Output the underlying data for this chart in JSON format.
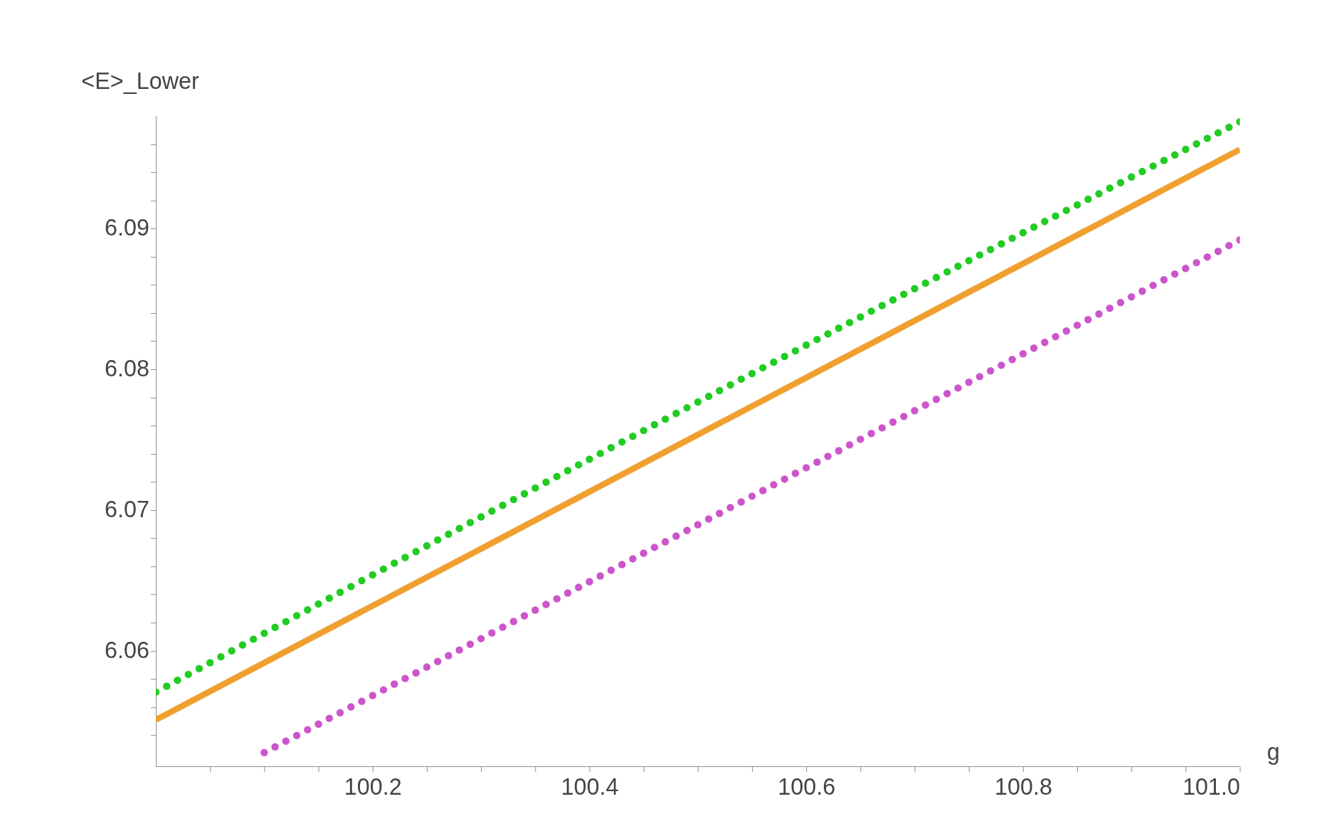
{
  "chart_data": {
    "type": "scatter",
    "xlabel": "g",
    "ylabel": "<E>_Lower",
    "grid": false,
    "xlim": [
      100.0,
      101.0
    ],
    "ylim": [
      6.0518,
      6.098
    ],
    "xticks": [
      {
        "value": 100.05,
        "label": null
      },
      {
        "value": 100.1,
        "label": null
      },
      {
        "value": 100.15,
        "label": null
      },
      100.2,
      {
        "value": 100.25,
        "label": null
      },
      {
        "value": 100.3,
        "label": null
      },
      {
        "value": 100.35,
        "label": null
      },
      100.4,
      {
        "value": 100.45,
        "label": null
      },
      {
        "value": 100.5,
        "label": null
      },
      {
        "value": 100.55,
        "label": null
      },
      100.6,
      {
        "value": 100.65,
        "label": null
      },
      {
        "value": 100.7,
        "label": null
      },
      {
        "value": 100.75,
        "label": null
      },
      100.8,
      {
        "value": 100.85,
        "label": null
      },
      {
        "value": 100.9,
        "label": null
      },
      {
        "value": 100.95,
        "label": null
      },
      {
        "value": 101.0,
        "label": "101.0"
      }
    ],
    "yticks": [
      {
        "value": 6.054,
        "label": null
      },
      {
        "value": 6.056,
        "label": null
      },
      {
        "value": 6.058,
        "label": null
      },
      6.06,
      {
        "value": 6.062,
        "label": null
      },
      {
        "value": 6.064,
        "label": null
      },
      {
        "value": 6.066,
        "label": null
      },
      {
        "value": 6.068,
        "label": null
      },
      6.07,
      {
        "value": 6.072,
        "label": null
      },
      {
        "value": 6.074,
        "label": null
      },
      {
        "value": 6.076,
        "label": null
      },
      {
        "value": 6.078,
        "label": null
      },
      6.08,
      {
        "value": 6.082,
        "label": null
      },
      {
        "value": 6.084,
        "label": null
      },
      {
        "value": 6.086,
        "label": null
      },
      {
        "value": 6.088,
        "label": null
      },
      6.09,
      {
        "value": 6.092,
        "label": null
      },
      {
        "value": 6.094,
        "label": null
      },
      {
        "value": 6.096,
        "label": null
      }
    ],
    "series": [
      {
        "type": "line",
        "color": "#f0a030",
        "x": [
          100.0,
          101.0
        ],
        "values": [
          6.0551,
          6.09561
        ]
      },
      {
        "marker": "circle",
        "color": "#22cc22",
        "x": [
          100.0,
          100.01,
          100.02,
          100.03,
          100.04,
          100.05,
          100.06,
          100.07,
          100.08,
          100.09,
          100.1,
          100.11,
          100.12,
          100.13,
          100.14,
          100.15,
          100.16,
          100.17,
          100.18,
          100.19,
          100.2,
          100.21,
          100.22,
          100.23,
          100.24,
          100.25,
          100.26,
          100.27,
          100.28,
          100.29,
          100.3,
          100.31,
          100.32,
          100.33,
          100.34,
          100.35,
          100.36,
          100.37,
          100.38,
          100.39,
          100.4,
          100.41,
          100.42,
          100.43,
          100.44,
          100.45,
          100.46,
          100.47,
          100.48,
          100.49,
          100.5,
          100.51,
          100.52,
          100.53,
          100.54,
          100.55,
          100.56,
          100.57,
          100.58,
          100.59,
          100.6,
          100.61,
          100.62,
          100.63,
          100.64,
          100.65,
          100.66,
          100.67,
          100.68,
          100.69,
          100.7,
          100.71,
          100.72,
          100.73,
          100.74,
          100.75,
          100.76,
          100.77,
          100.78,
          100.79,
          100.8,
          100.81,
          100.82,
          100.83,
          100.84,
          100.85,
          100.86,
          100.87,
          100.88,
          100.89,
          100.9,
          100.91,
          100.92,
          100.93,
          100.94,
          100.95,
          100.96,
          100.97,
          100.98,
          100.99,
          101.0
        ],
        "values": [
          6.05707,
          6.05749,
          6.05791,
          6.05833,
          6.05874,
          6.05916,
          6.05958,
          6.06,
          6.06042,
          6.06083,
          6.06125,
          6.06167,
          6.06208,
          6.0625,
          6.06291,
          6.06333,
          6.06374,
          6.06416,
          6.06457,
          6.06499,
          6.0654,
          6.06581,
          6.06623,
          6.06664,
          6.06705,
          6.06746,
          6.06788,
          6.06829,
          6.0687,
          6.06911,
          6.06952,
          6.06993,
          6.07034,
          6.07075,
          6.07116,
          6.07157,
          6.07198,
          6.07239,
          6.0728,
          6.07321,
          6.07361,
          6.07402,
          6.07443,
          6.07484,
          6.07524,
          6.07565,
          6.07606,
          6.07646,
          6.07687,
          6.07727,
          6.07768,
          6.07808,
          6.07849,
          6.07889,
          6.0793,
          6.0797,
          6.08011,
          6.08051,
          6.08091,
          6.08131,
          6.08172,
          6.08212,
          6.08252,
          6.08292,
          6.08332,
          6.08372,
          6.08413,
          6.08453,
          6.08493,
          6.08533,
          6.08573,
          6.08612,
          6.08652,
          6.08692,
          6.08732,
          6.08772,
          6.08812,
          6.08851,
          6.08891,
          6.08931,
          6.08971,
          6.0901,
          6.0905,
          6.09089,
          6.09129,
          6.09168,
          6.09208,
          6.09247,
          6.09287,
          6.09326,
          6.09366,
          6.09405,
          6.09444,
          6.09484,
          6.09523,
          6.09562,
          6.09601,
          6.09641,
          6.0968,
          6.09719,
          6.09758
        ]
      },
      {
        "marker": "circle",
        "color": "#cc55cc",
        "x": [
          100.1,
          100.11,
          100.12,
          100.13,
          100.14,
          100.15,
          100.16,
          100.17,
          100.18,
          100.19,
          100.2,
          100.21,
          100.22,
          100.23,
          100.24,
          100.25,
          100.26,
          100.27,
          100.28,
          100.29,
          100.3,
          100.31,
          100.32,
          100.33,
          100.34,
          100.35,
          100.36,
          100.37,
          100.38,
          100.39,
          100.4,
          100.41,
          100.42,
          100.43,
          100.44,
          100.45,
          100.46,
          100.47,
          100.48,
          100.49,
          100.5,
          100.51,
          100.52,
          100.53,
          100.54,
          100.55,
          100.56,
          100.57,
          100.58,
          100.59,
          100.6,
          100.61,
          100.62,
          100.63,
          100.64,
          100.65,
          100.66,
          100.67,
          100.68,
          100.69,
          100.7,
          100.71,
          100.72,
          100.73,
          100.74,
          100.75,
          100.76,
          100.77,
          100.78,
          100.79,
          100.8,
          100.81,
          100.82,
          100.83,
          100.84,
          100.85,
          100.86,
          100.87,
          100.88,
          100.89,
          100.9,
          100.91,
          100.92,
          100.93,
          100.94,
          100.95,
          100.96,
          100.97,
          100.98,
          100.99,
          101.0
        ],
        "values": [
          6.05278,
          6.05318,
          6.05359,
          6.05399,
          6.0544,
          6.0548,
          6.05521,
          6.05561,
          6.05602,
          6.05642,
          6.05683,
          6.05723,
          6.05764,
          6.05804,
          6.05844,
          6.05885,
          6.05925,
          6.05966,
          6.06006,
          6.06047,
          6.06087,
          6.06128,
          6.06168,
          6.06209,
          6.06249,
          6.0629,
          6.0633,
          6.0637,
          6.06411,
          6.06451,
          6.06492,
          6.06532,
          6.06573,
          6.06613,
          6.06654,
          6.06694,
          6.06735,
          6.06775,
          6.06815,
          6.06856,
          6.06896,
          6.06937,
          6.06977,
          6.07018,
          6.07058,
          6.07099,
          6.07139,
          6.0718,
          6.0722,
          6.07261,
          6.07301,
          6.07341,
          6.07382,
          6.07422,
          6.07463,
          6.07503,
          6.07544,
          6.07584,
          6.07625,
          6.07665,
          6.07706,
          6.07746,
          6.07787,
          6.07827,
          6.07867,
          6.07908,
          6.07948,
          6.07989,
          6.08029,
          6.0807,
          6.0811,
          6.08151,
          6.08191,
          6.08232,
          6.08272,
          6.08313,
          6.08353,
          6.08393,
          6.08434,
          6.08474,
          6.08515,
          6.08555,
          6.08596,
          6.08636,
          6.08677,
          6.08717,
          6.08758,
          6.08798,
          6.08838,
          6.08879,
          6.08919
        ]
      }
    ]
  }
}
